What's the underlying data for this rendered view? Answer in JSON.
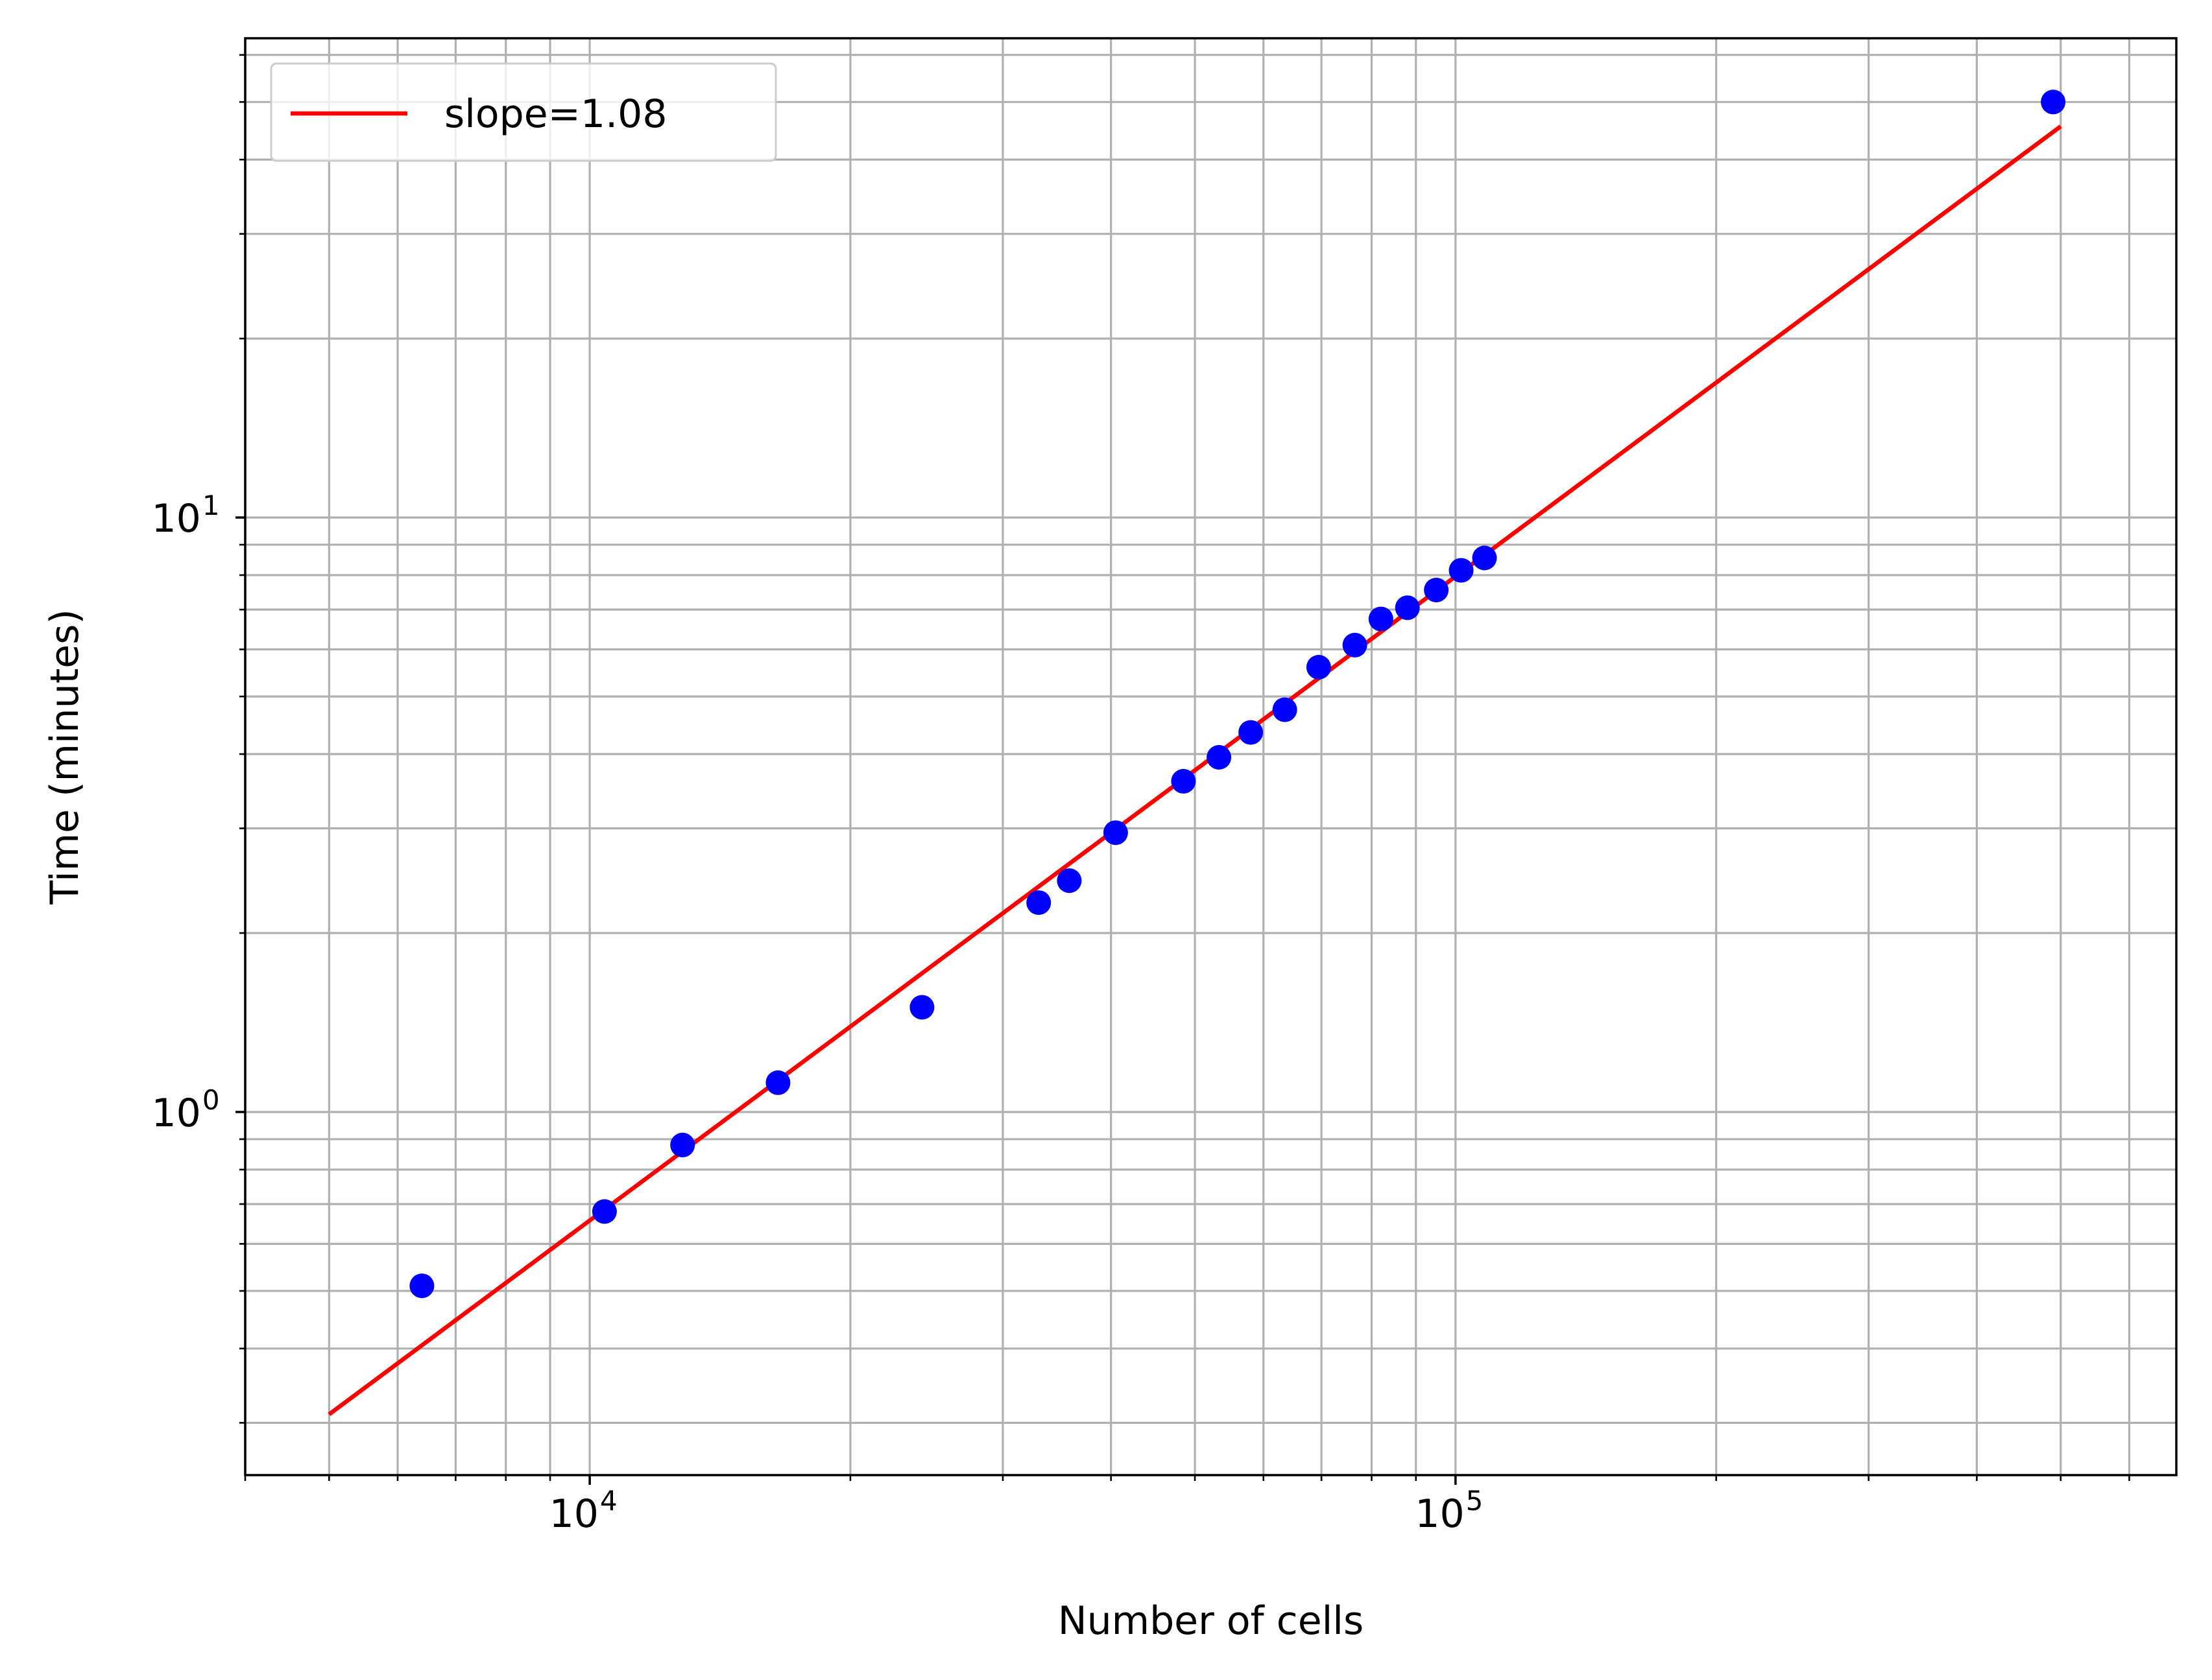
{
  "chart_data": {
    "type": "scatter",
    "title": "",
    "xlabel": "Number of cells",
    "ylabel": "Time (minutes)",
    "xscale": "log",
    "yscale": "log",
    "xlim": [
      4000,
      680000
    ],
    "ylim": [
      0.245,
      64
    ],
    "grid": "on (major and minor)",
    "legend_position": "top-left",
    "x_ticks": [
      {
        "value": 10000,
        "base": "10",
        "exp": "4"
      },
      {
        "value": 100000,
        "base": "10",
        "exp": "5"
      }
    ],
    "y_ticks": [
      {
        "value": 1,
        "base": "10",
        "exp": "0"
      },
      {
        "value": 10,
        "base": "10",
        "exp": "1"
      }
    ],
    "series": [
      {
        "kind": "scatter",
        "color": "#0000ff",
        "points": [
          [
            6400,
            0.51
          ],
          [
            10400,
            0.68
          ],
          [
            12800,
            0.88
          ],
          [
            16500,
            1.12
          ],
          [
            24200,
            1.5
          ],
          [
            33000,
            2.25
          ],
          [
            35800,
            2.45
          ],
          [
            40500,
            2.95
          ],
          [
            48500,
            3.6
          ],
          [
            53300,
            3.95
          ],
          [
            58000,
            4.35
          ],
          [
            63500,
            4.75
          ],
          [
            69500,
            5.6
          ],
          [
            76500,
            6.1
          ],
          [
            82000,
            6.75
          ],
          [
            88000,
            7.05
          ],
          [
            95000,
            7.55
          ],
          [
            101500,
            8.15
          ],
          [
            108000,
            8.55
          ],
          [
            490000,
            50
          ]
        ]
      },
      {
        "kind": "line",
        "name": "slope=1.08",
        "color": "#ff0000",
        "points": [
          [
            5000,
            0.31
          ],
          [
            500000,
            45.5
          ]
        ]
      }
    ]
  }
}
